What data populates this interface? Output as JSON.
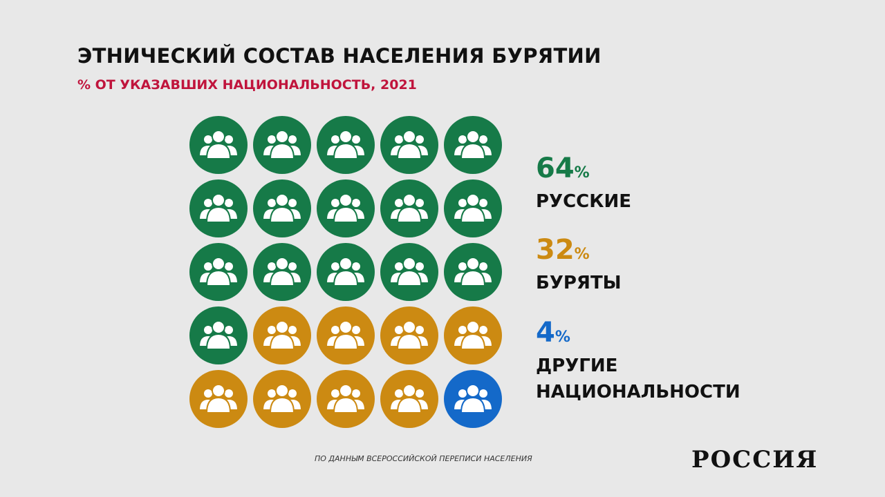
{
  "chart_data": {
    "type": "waffle",
    "title": "ЭТНИЧЕСКИЙ СОСТАВ НАСЕЛЕНИЯ БУРЯТИИ",
    "subtitle": "% ОТ УКАЗАВШИХ НАЦИОНАЛЬНОСТЬ, 2021",
    "unit": "%",
    "series": [
      {
        "name": "РУССКИЕ",
        "color": "#167a48",
        "values": [
          64
        ]
      },
      {
        "name": "БУРЯТЫ",
        "color": "#cc8a12",
        "values": [
          32
        ]
      },
      {
        "name": "ДРУГИЕ НАЦИОНАЛЬНОСТИ",
        "color": "#1469c9",
        "values": [
          4
        ]
      }
    ],
    "source": "ПО ДАННЫМ ВСЕРОССИЙСКОЙ ПЕРЕПИСИ НАСЕЛЕНИЯ",
    "logo": "РОССИЯ"
  }
}
